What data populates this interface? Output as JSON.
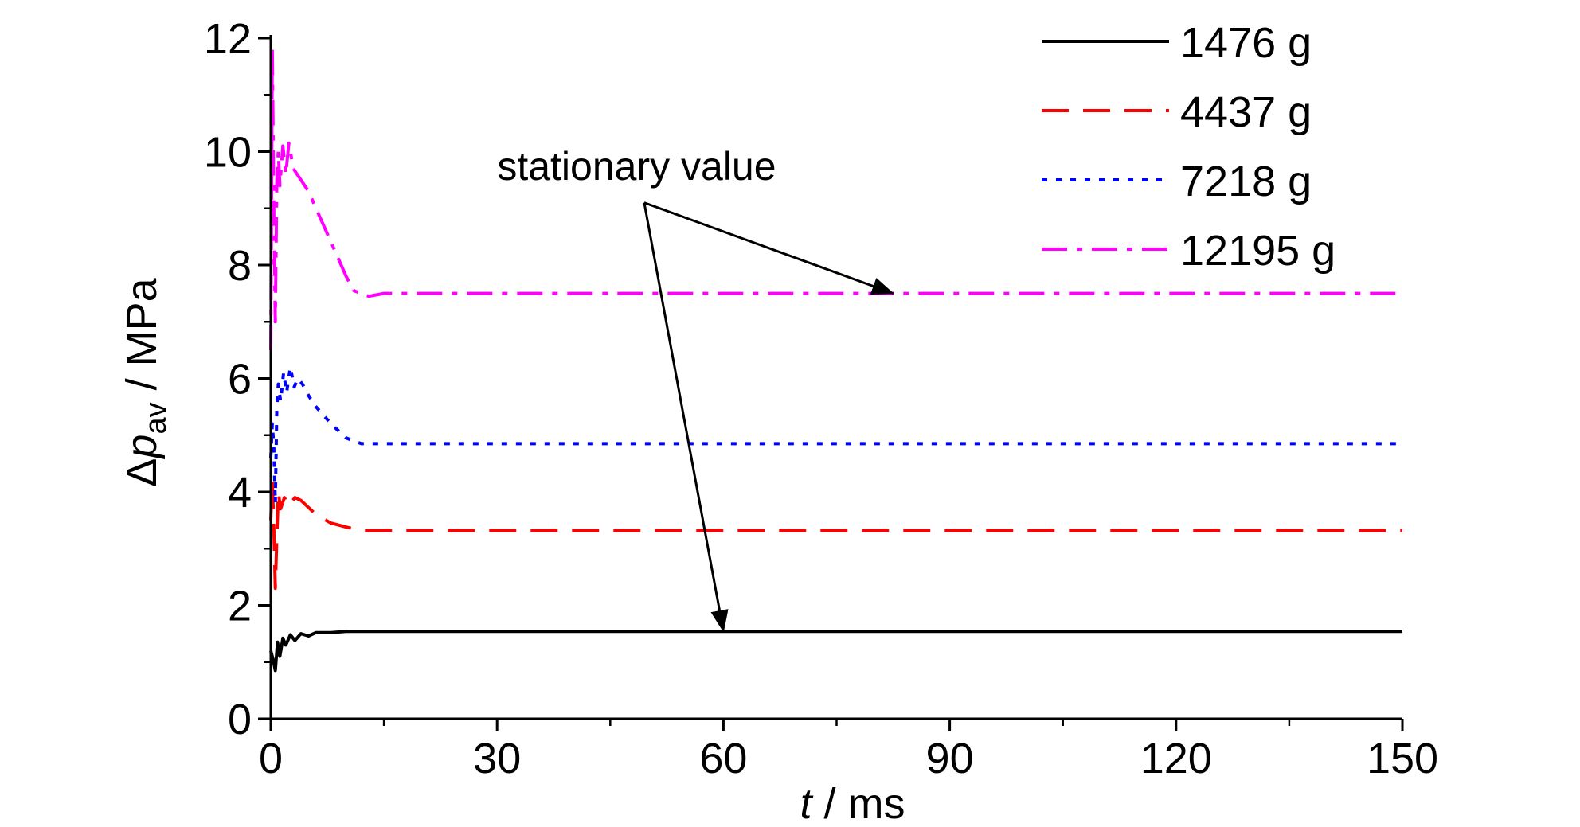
{
  "chart_data": {
    "type": "line",
    "title": "",
    "xlabel": {
      "var": "t",
      "unit": " / ms"
    },
    "ylabel": {
      "prefix": "Δ",
      "var": "p",
      "sub": "av",
      "unit": " / MPa"
    },
    "xlim": [
      0,
      150
    ],
    "ylim": [
      0,
      12
    ],
    "xticks": [
      0,
      30,
      60,
      90,
      120,
      150
    ],
    "yticks": [
      0,
      2,
      4,
      6,
      8,
      10,
      12
    ],
    "grid": false,
    "legend_position": "top-right",
    "series": [
      {
        "name": "1476 g",
        "color": "#000000",
        "dash": "solid",
        "points": [
          [
            0,
            1.2
          ],
          [
            0.3,
            1.05
          ],
          [
            0.6,
            0.85
          ],
          [
            0.9,
            1.35
          ],
          [
            1.2,
            1.1
          ],
          [
            1.6,
            1.42
          ],
          [
            2.0,
            1.3
          ],
          [
            2.6,
            1.48
          ],
          [
            3.2,
            1.38
          ],
          [
            4,
            1.5
          ],
          [
            5,
            1.46
          ],
          [
            6,
            1.52
          ],
          [
            8,
            1.52
          ],
          [
            10,
            1.54
          ],
          [
            15,
            1.54
          ],
          [
            30,
            1.54
          ],
          [
            60,
            1.54
          ],
          [
            90,
            1.54
          ],
          [
            120,
            1.54
          ],
          [
            150,
            1.54
          ]
        ]
      },
      {
        "name": "4437 g",
        "color": "#ff0000",
        "dash": "dashed",
        "points": [
          [
            0,
            3.5
          ],
          [
            0.2,
            4.2
          ],
          [
            0.4,
            3.4
          ],
          [
            0.6,
            2.3
          ],
          [
            0.8,
            3.2
          ],
          [
            1.0,
            4.0
          ],
          [
            1.3,
            3.7
          ],
          [
            1.8,
            3.9
          ],
          [
            2.4,
            3.75
          ],
          [
            3.2,
            3.9
          ],
          [
            4,
            3.85
          ],
          [
            6,
            3.6
          ],
          [
            8,
            3.45
          ],
          [
            10,
            3.38
          ],
          [
            12,
            3.32
          ],
          [
            15,
            3.32
          ],
          [
            30,
            3.32
          ],
          [
            60,
            3.32
          ],
          [
            90,
            3.32
          ],
          [
            120,
            3.32
          ],
          [
            150,
            3.32
          ]
        ]
      },
      {
        "name": "7218 g",
        "color": "#0000ff",
        "dash": "dotted",
        "points": [
          [
            0,
            4.6
          ],
          [
            0.2,
            5.2
          ],
          [
            0.4,
            4.8
          ],
          [
            0.6,
            3.8
          ],
          [
            0.8,
            5.5
          ],
          [
            1.0,
            5.9
          ],
          [
            1.3,
            5.6
          ],
          [
            1.7,
            6.1
          ],
          [
            2.1,
            5.75
          ],
          [
            2.6,
            6.2
          ],
          [
            3.1,
            5.85
          ],
          [
            3.6,
            6.0
          ],
          [
            4.2,
            5.9
          ],
          [
            5,
            5.7
          ],
          [
            6,
            5.5
          ],
          [
            8,
            5.2
          ],
          [
            10,
            4.95
          ],
          [
            12,
            4.85
          ],
          [
            15,
            4.85
          ],
          [
            30,
            4.85
          ],
          [
            60,
            4.85
          ],
          [
            90,
            4.85
          ],
          [
            120,
            4.85
          ],
          [
            150,
            4.85
          ]
        ]
      },
      {
        "name": "12195 g",
        "color": "#ff00ff",
        "dash": "dashdot",
        "points": [
          [
            0,
            6.5
          ],
          [
            0.2,
            11.8
          ],
          [
            0.4,
            9.0
          ],
          [
            0.6,
            7.0
          ],
          [
            0.8,
            9.5
          ],
          [
            1.0,
            10.0
          ],
          [
            1.2,
            9.4
          ],
          [
            1.6,
            10.1
          ],
          [
            2.0,
            9.6
          ],
          [
            2.4,
            10.15
          ],
          [
            3,
            9.7
          ],
          [
            4,
            9.5
          ],
          [
            5,
            9.3
          ],
          [
            6,
            9.0
          ],
          [
            7,
            8.7
          ],
          [
            8,
            8.4
          ],
          [
            9,
            8.1
          ],
          [
            10,
            7.8
          ],
          [
            11,
            7.55
          ],
          [
            12,
            7.5
          ],
          [
            13,
            7.45
          ],
          [
            15,
            7.5
          ],
          [
            30,
            7.5
          ],
          [
            60,
            7.5
          ],
          [
            90,
            7.5
          ],
          [
            120,
            7.5
          ],
          [
            150,
            7.5
          ]
        ]
      }
    ],
    "annotations": [
      {
        "text": "stationary value",
        "anchor": [
          48.5,
          9.5
        ],
        "arrow_origin": [
          49.5,
          9.1
        ],
        "arrows_to": [
          [
            82.5,
            7.5
          ],
          [
            60,
            1.54
          ]
        ]
      }
    ]
  }
}
